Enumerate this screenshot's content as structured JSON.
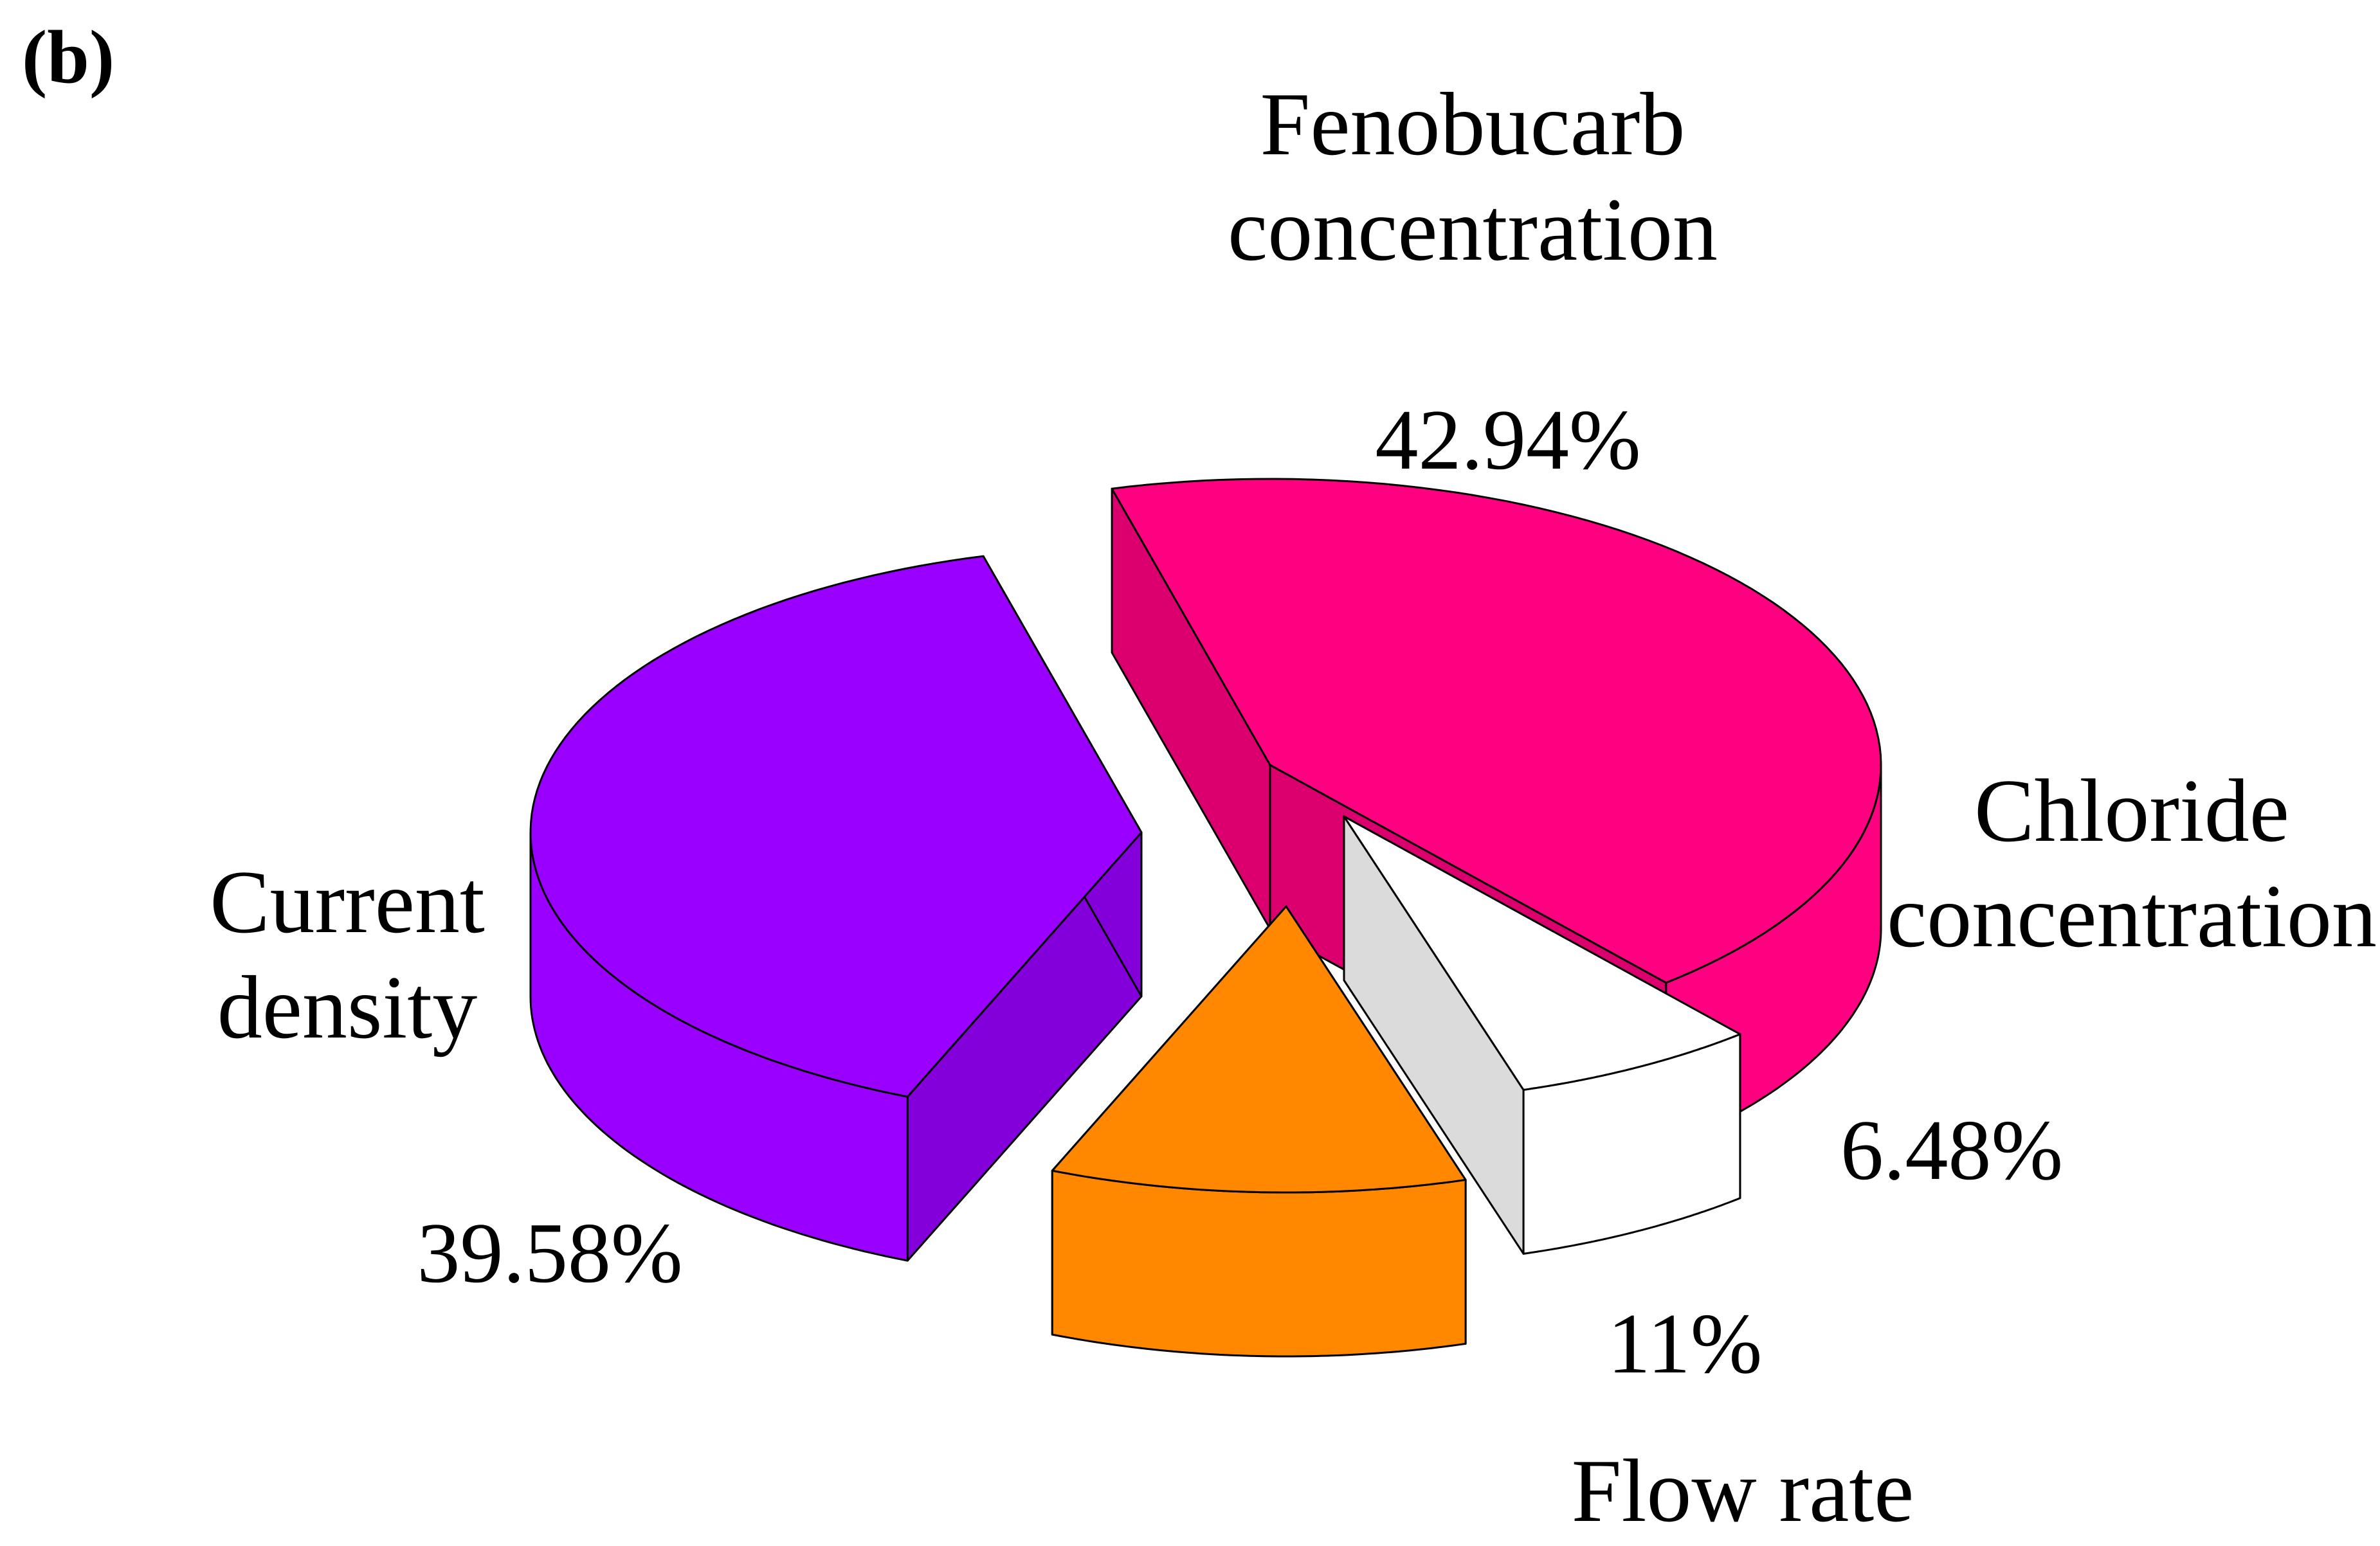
{
  "panel_label": "(b)",
  "chart_data": {
    "type": "pie",
    "style": "3d-exploded",
    "title": "",
    "slices": [
      {
        "name": "Fenobucarb concentration",
        "name_lines": [
          "Fenobucarb",
          "concentration"
        ],
        "value": 42.94,
        "value_label": "42.94%",
        "color": "#ff0080"
      },
      {
        "name": "Chloride concentration",
        "name_lines": [
          "Chloride",
          "concentration"
        ],
        "value": 6.48,
        "value_label": "6.48%",
        "color": "#ffffff"
      },
      {
        "name": "Flow rate",
        "name_lines": [
          "Flow rate"
        ],
        "value": 11,
        "value_label": "11%",
        "color": "#ff8800"
      },
      {
        "name": "Current density",
        "name_lines": [
          "Current",
          "density"
        ],
        "value": 39.58,
        "value_label": "39.58%",
        "color": "#9900ff"
      }
    ]
  }
}
